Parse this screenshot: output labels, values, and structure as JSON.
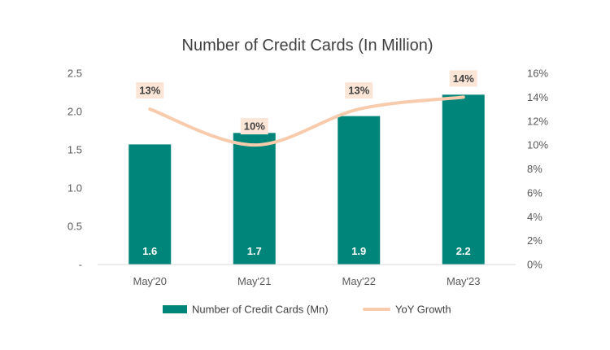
{
  "chart_data": {
    "type": "bar",
    "title": "Number of Credit Cards (In Million)",
    "categories": [
      "May'20",
      "May'21",
      "May'22",
      "May'23"
    ],
    "series": [
      {
        "name": "Number of Credit Cards (Mn)",
        "type": "bar",
        "axis": "left",
        "values": [
          1.57,
          1.72,
          1.94,
          2.22
        ],
        "labels": [
          "1.6",
          "1.7",
          "1.9",
          "2.2"
        ],
        "color": "#00857A"
      },
      {
        "name": "YoY Growth",
        "type": "line",
        "axis": "right",
        "values": [
          0.13,
          0.1,
          0.13,
          0.14
        ],
        "labels": [
          "13%",
          "10%",
          "13%",
          "14%"
        ],
        "color": "#F8CBAD",
        "label_bg": "#FBE5D6"
      }
    ],
    "y_left": {
      "ylim": [
        0,
        2.5
      ],
      "ticks": [
        0,
        0.5,
        1.0,
        1.5,
        2.0,
        2.5
      ],
      "tick_labels": [
        "-",
        "0.5",
        "1.0",
        "1.5",
        "2.0",
        "2.5"
      ]
    },
    "y_right": {
      "ylim": [
        0,
        0.16
      ],
      "ticks": [
        0,
        0.02,
        0.04,
        0.06,
        0.08,
        0.1,
        0.12,
        0.14,
        0.16
      ],
      "tick_labels": [
        "0%",
        "2%",
        "4%",
        "6%",
        "8%",
        "10%",
        "12%",
        "14%",
        "16%"
      ]
    },
    "grid": false,
    "legend": "bottom"
  }
}
